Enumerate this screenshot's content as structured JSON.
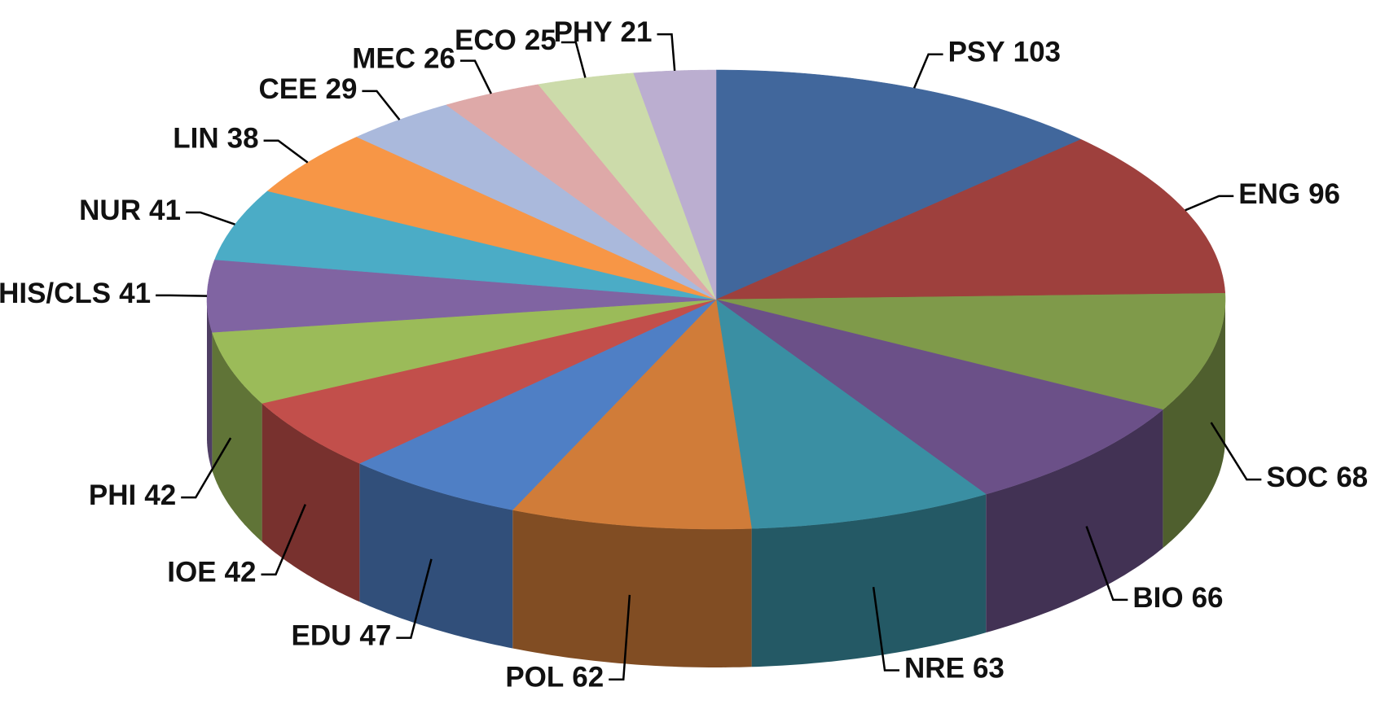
{
  "chart_data": {
    "type": "pie",
    "categories": [
      "PSY",
      "ENG",
      "SOC",
      "BIO",
      "NRE",
      "POL",
      "EDU",
      "IOE",
      "PHI",
      "HIS/CLS",
      "NUR",
      "LIN",
      "CEE",
      "MEC",
      "ECO",
      "PHY"
    ],
    "values": [
      103,
      96,
      68,
      66,
      63,
      62,
      47,
      42,
      42,
      41,
      41,
      38,
      29,
      26,
      25,
      21
    ],
    "colors": [
      "#41679c",
      "#9e403d",
      "#7f9a4a",
      "#6b5088",
      "#3a8fa3",
      "#d07c39",
      "#4f7fc5",
      "#c24f4b",
      "#9bbb59",
      "#8064a2",
      "#4bacc6",
      "#f79646",
      "#aab9dc",
      "#dea9a8",
      "#ccdbaa",
      "#bbaed0"
    ]
  }
}
